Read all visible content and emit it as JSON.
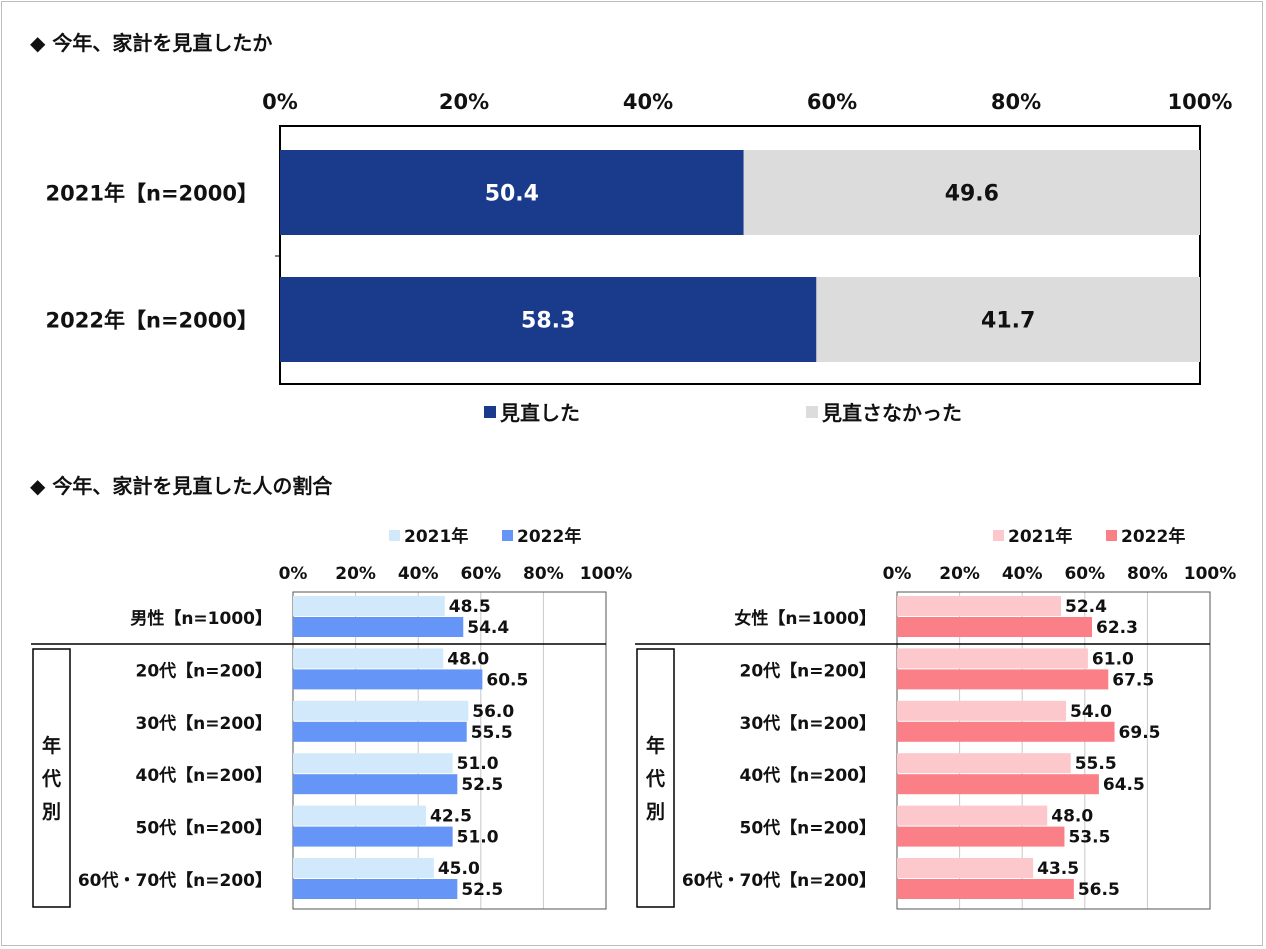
{
  "section1": {
    "title": "◆ 今年、家計を見直したか"
  },
  "section2": {
    "title": "◆ 今年、家計を見直した人の割合"
  },
  "colors": {
    "reviewed": "#1a3a8c",
    "not_reviewed": "#dcdcdc",
    "male_2021": "#d2e9fb",
    "male_2022": "#6495f7",
    "female_2021": "#fcc8cb",
    "female_2022": "#fb7f86"
  },
  "chart_data": [
    {
      "type": "bar",
      "orientation": "horizontal",
      "stacked": true,
      "percent": true,
      "categories": [
        "2021年【n=2000】",
        "2022年【n=2000】"
      ],
      "series": [
        {
          "name": "見直した",
          "values": [
            50.4,
            58.3
          ]
        },
        {
          "name": "見直さなかった",
          "values": [
            49.6,
            41.7
          ]
        }
      ],
      "xticks": [
        "0%",
        "20%",
        "40%",
        "60%",
        "80%",
        "100%"
      ],
      "xlim": [
        0,
        100
      ],
      "legend": "bottom",
      "grid": false
    },
    {
      "type": "bar",
      "orientation": "horizontal",
      "group_label": "年代別",
      "categories": [
        "男性【n=1000】",
        "20代【n=200】",
        "30代【n=200】",
        "40代【n=200】",
        "50代【n=200】",
        "60代・70代【n=200】"
      ],
      "series": [
        {
          "name": "2021年",
          "values": [
            48.5,
            48.0,
            56.0,
            51.0,
            42.5,
            45.0
          ]
        },
        {
          "name": "2022年",
          "values": [
            54.4,
            60.5,
            55.5,
            52.5,
            51.0,
            52.5
          ]
        }
      ],
      "xticks": [
        "0%",
        "20%",
        "40%",
        "60%",
        "80%",
        "100%"
      ],
      "xlim": [
        0,
        100
      ],
      "legend": "top",
      "grid": true
    },
    {
      "type": "bar",
      "orientation": "horizontal",
      "group_label": "年代別",
      "categories": [
        "女性【n=1000】",
        "20代【n=200】",
        "30代【n=200】",
        "40代【n=200】",
        "50代【n=200】",
        "60代・70代【n=200】"
      ],
      "series": [
        {
          "name": "2021年",
          "values": [
            52.4,
            61.0,
            54.0,
            55.5,
            48.0,
            43.5
          ]
        },
        {
          "name": "2022年",
          "values": [
            62.3,
            67.5,
            69.5,
            64.5,
            53.5,
            56.5
          ]
        }
      ],
      "xticks": [
        "0%",
        "20%",
        "40%",
        "60%",
        "80%",
        "100%"
      ],
      "xlim": [
        0,
        100
      ],
      "legend": "top",
      "grid": true
    }
  ]
}
